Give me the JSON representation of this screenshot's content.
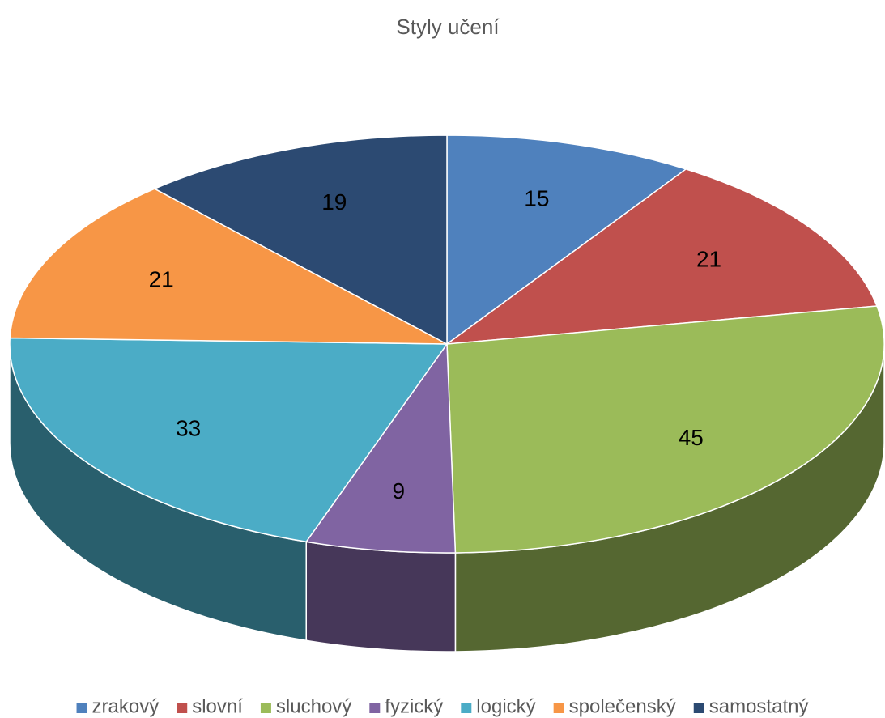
{
  "chart_data": {
    "type": "pie",
    "title": "Styly učení",
    "categories": [
      "zrakový",
      "slovní",
      "sluchový",
      "fyzický",
      "logický",
      "společenský",
      "samostatný"
    ],
    "values": [
      15,
      21,
      45,
      9,
      33,
      21,
      19
    ],
    "colors": [
      "#4f81bd",
      "#c0504d",
      "#9bbb59",
      "#8064a2",
      "#4bacc6",
      "#f79646",
      "#2c4a72"
    ],
    "legend": "bottom"
  }
}
